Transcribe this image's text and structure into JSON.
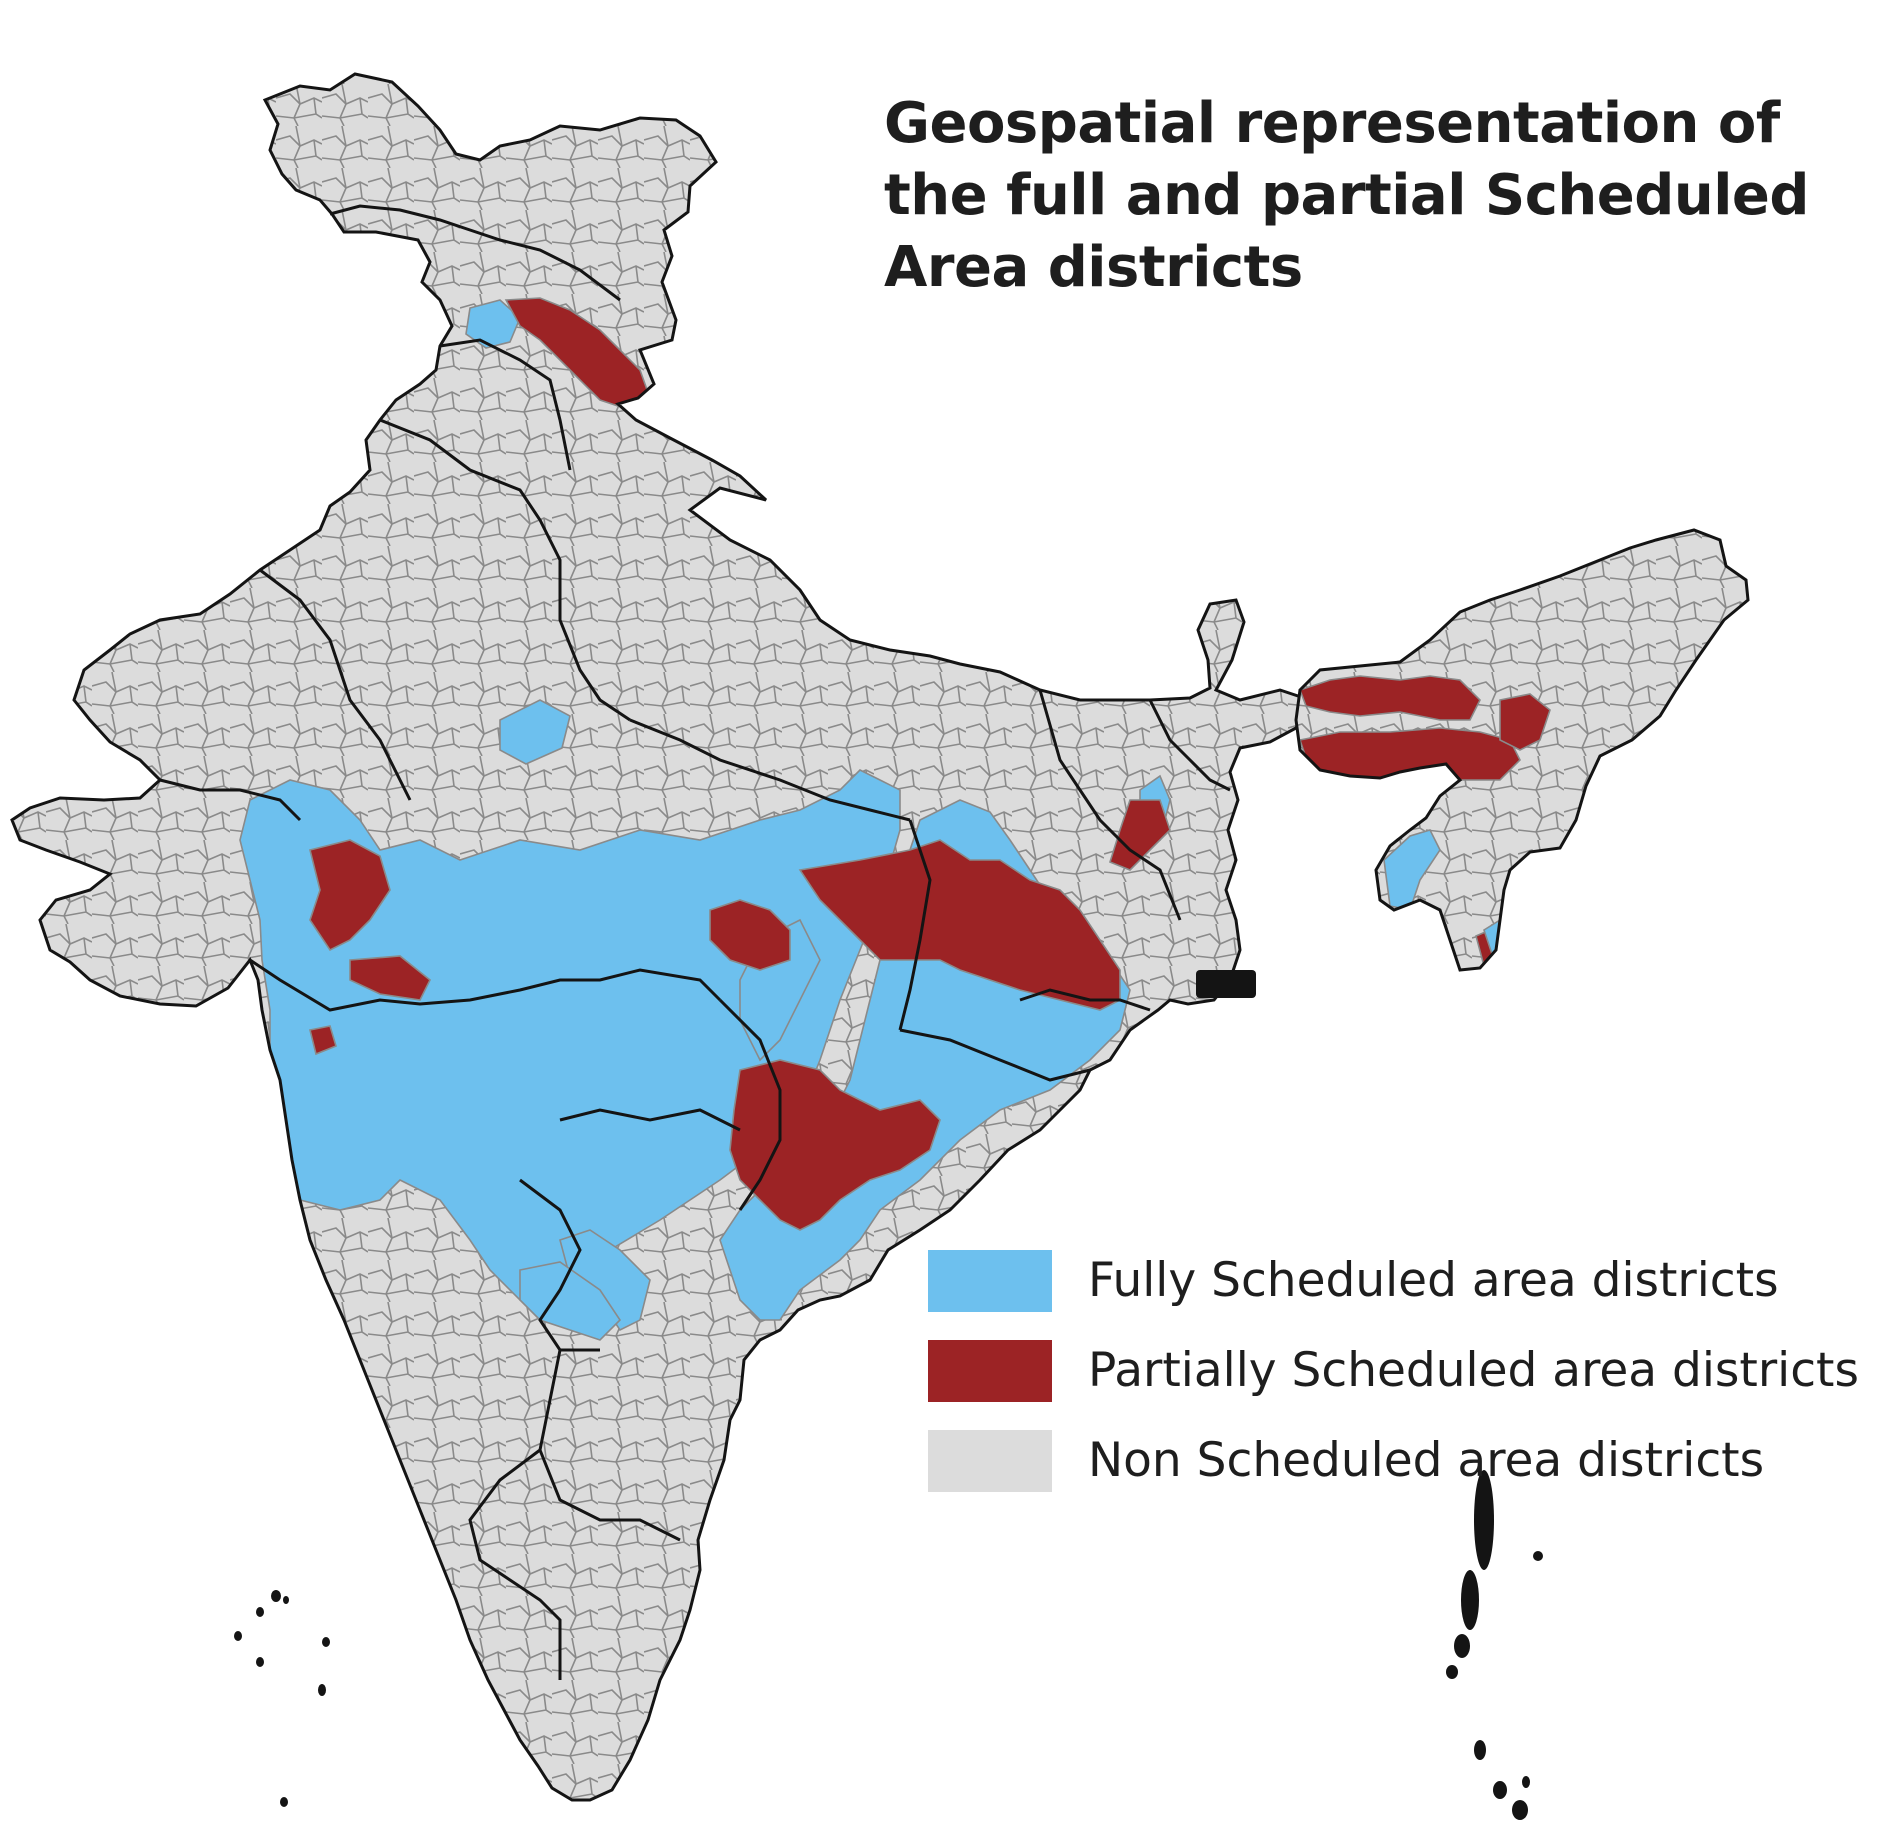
{
  "title": "Geospatial representation of the full and partial Scheduled Area districts",
  "colors": {
    "fully_scheduled": "#6dc0ee",
    "partially_scheduled": "#9c2325",
    "non_scheduled": "#dcdcdc",
    "state_border": "#141414",
    "district_border": "#8a8a8a"
  },
  "legend": [
    {
      "label": "Fully Scheduled area districts",
      "color": "#6dc0ee"
    },
    {
      "label": "Partially Scheduled area districts",
      "color": "#9c2325"
    },
    {
      "label": "Non Scheduled area districts",
      "color": "#dcdcdc"
    }
  ]
}
